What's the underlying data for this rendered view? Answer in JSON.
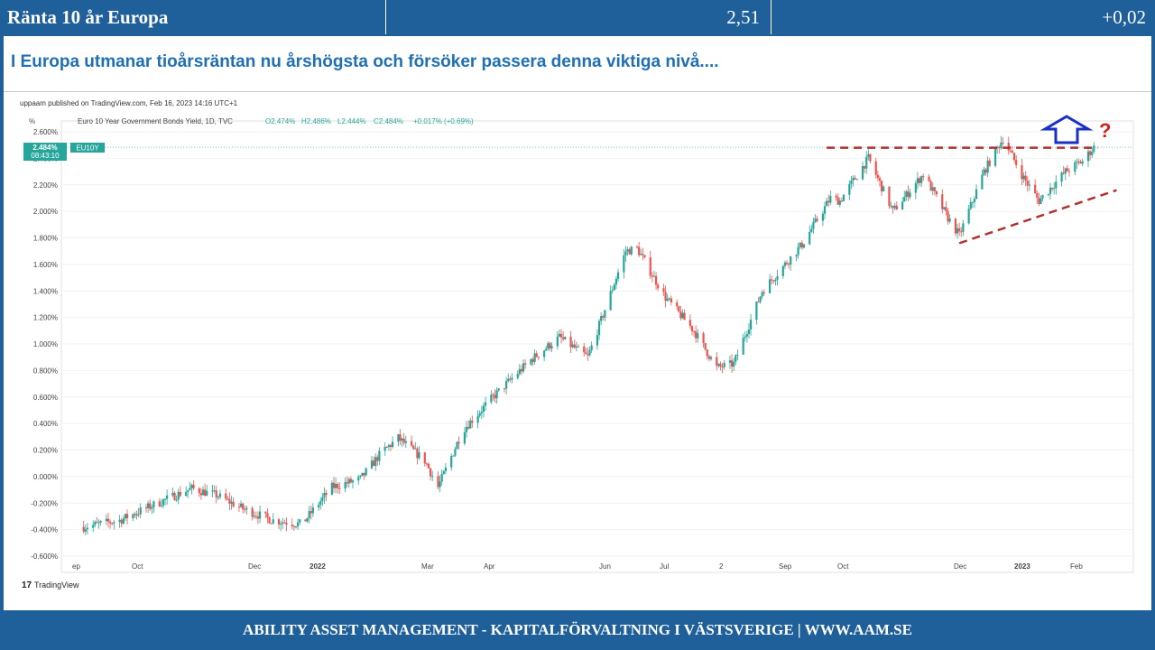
{
  "header": {
    "title": "Ränta 10 år Europa",
    "value": "2,51",
    "change": "+0,02"
  },
  "headline": "I Europa utmanar tioårsräntan nu årshögsta och försöker passera denna viktiga nivå....",
  "footer": "ABILITY ASSET MANAGEMENT -  KAPITALFÖRVALTNING I VÄSTSVERIGE   |   WWW.AAM.SE",
  "chart_meta": {
    "published": "uppaam published on TradingView.com, Feb 16, 2023 14:16 UTC+1",
    "unit": "%",
    "instrument": "Euro 10 Year Government Bonds Yield, 1D, TVC",
    "ohlc": [
      "O2.474%",
      "H2.486%",
      "L2.444%",
      "C2.484%",
      "+0.017% (+0.69%)"
    ],
    "price_tag": "2.484%",
    "time_tag": "08:43:10",
    "symbol_tag": "EU10Y",
    "question_mark": "?",
    "logo_text": "TradingView"
  },
  "colors": {
    "brand": "#1f5f9a",
    "headline": "#1f6fb5",
    "up_candle": "#26a69a",
    "down_candle": "#ef5350",
    "trendline": "#b03030",
    "arrow": "#1a2fc4",
    "question": "#d42020"
  },
  "chart_data": {
    "type": "candlestick",
    "ylim": [
      -0.6,
      2.6
    ],
    "y_ticks": [
      -0.6,
      -0.4,
      -0.2,
      0.0,
      0.2,
      0.4,
      0.6,
      0.8,
      1.0,
      1.2,
      1.4,
      1.6,
      1.8,
      2.0,
      2.2,
      2.4,
      2.6
    ],
    "y_tick_labels": [
      "-0.600%",
      "-0.400%",
      "-0.200%",
      "0.000%",
      "0.200%",
      "0.400%",
      "0.600%",
      "0.800%",
      "1.000%",
      "1.200%",
      "1.400%",
      "1.600%",
      "1.800%",
      "2.000%",
      "2.200%",
      "2.400%",
      "2.600%"
    ],
    "x_labels": [
      "ep",
      "Oct",
      "Dec",
      "2022",
      "Mar",
      "Apr",
      "Jun",
      "Jul",
      "2",
      "Sep",
      "Oct",
      "Dec",
      "2023",
      "Feb"
    ],
    "series_path": [
      [
        "2021-09-01",
        -0.38
      ],
      [
        "2021-09-20",
        -0.33
      ],
      [
        "2021-10-10",
        -0.2
      ],
      [
        "2021-10-28",
        -0.09
      ],
      [
        "2021-11-10",
        -0.14
      ],
      [
        "2021-11-25",
        -0.25
      ],
      [
        "2021-12-10",
        -0.33
      ],
      [
        "2021-12-25",
        -0.36
      ],
      [
        "2022-01-10",
        -0.08
      ],
      [
        "2022-01-25",
        -0.02
      ],
      [
        "2022-02-05",
        0.18
      ],
      [
        "2022-02-14",
        0.29
      ],
      [
        "2022-02-28",
        0.12
      ],
      [
        "2022-03-07",
        -0.08
      ],
      [
        "2022-03-20",
        0.35
      ],
      [
        "2022-04-05",
        0.6
      ],
      [
        "2022-04-25",
        0.88
      ],
      [
        "2022-05-10",
        1.05
      ],
      [
        "2022-05-25",
        0.9
      ],
      [
        "2022-06-14",
        1.7
      ],
      [
        "2022-06-20",
        1.72
      ],
      [
        "2022-07-05",
        1.35
      ],
      [
        "2022-07-20",
        1.1
      ],
      [
        "2022-08-01",
        0.82
      ],
      [
        "2022-08-10",
        0.85
      ],
      [
        "2022-08-25",
        1.4
      ],
      [
        "2022-09-15",
        1.75
      ],
      [
        "2022-09-30",
        2.1
      ],
      [
        "2022-10-05",
        2.08
      ],
      [
        "2022-10-20",
        2.4
      ],
      [
        "2022-11-02",
        2.0
      ],
      [
        "2022-11-18",
        2.28
      ],
      [
        "2022-12-01",
        1.95
      ],
      [
        "2022-12-07",
        1.82
      ],
      [
        "2022-12-20",
        2.3
      ],
      [
        "2022-12-30",
        2.55
      ],
      [
        "2023-01-10",
        2.25
      ],
      [
        "2023-01-18",
        2.08
      ],
      [
        "2023-02-01",
        2.3
      ],
      [
        "2023-02-10",
        2.38
      ],
      [
        "2023-02-16",
        2.484
      ]
    ],
    "resistance_level": 2.48,
    "support_line": [
      [
        "2022-12-07",
        1.76
      ],
      [
        "2023-02-28",
        2.16
      ]
    ]
  }
}
